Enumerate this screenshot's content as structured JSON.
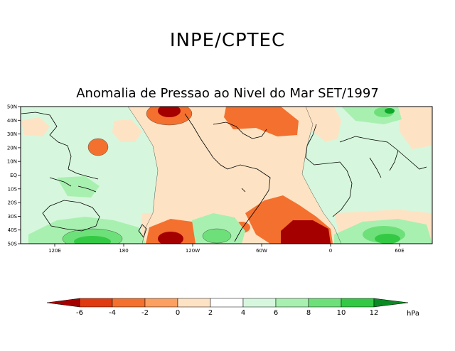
{
  "header": {
    "agency": "INPE/CPTEC"
  },
  "map": {
    "title": "Anomalia de Pressao ao Nivel do Mar SET/1997",
    "lat_labels": [
      "50N",
      "40N",
      "30N",
      "20N",
      "10N",
      "EQ",
      "10S",
      "20S",
      "30S",
      "40S",
      "50S"
    ],
    "lon_labels": [
      "120E",
      "180",
      "120W",
      "60W",
      "0",
      "60E"
    ]
  },
  "legend": {
    "unit": "hPa",
    "levels": [
      "-6",
      "-4",
      "-2",
      "0",
      "2",
      "4",
      "6",
      "8",
      "10",
      "12"
    ],
    "colors": [
      "#a50000",
      "#e03a10",
      "#f4702e",
      "#fba060",
      "#fde3c4",
      "#ffffff",
      "#d6f7dd",
      "#a8f0b0",
      "#6ee07a",
      "#34c944",
      "#10a82a",
      "#0a8a22"
    ]
  }
}
